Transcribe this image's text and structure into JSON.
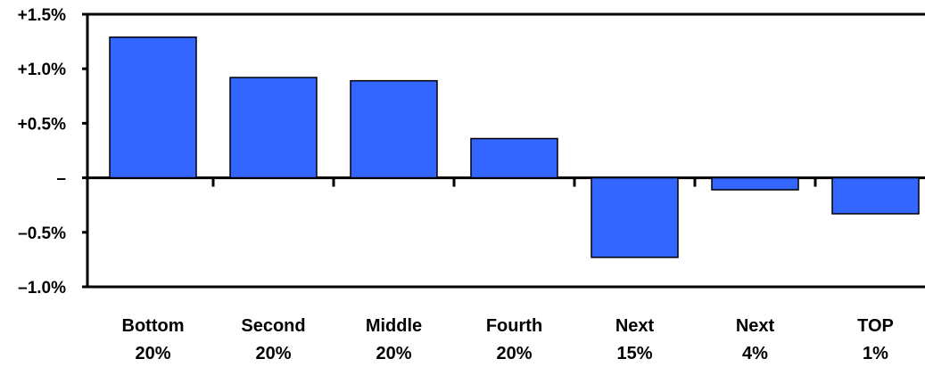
{
  "chart_data": {
    "type": "bar",
    "title": "",
    "xlabel": "",
    "ylabel": "",
    "ylim": [
      -1.0,
      1.5
    ],
    "yticks": [
      {
        "value": 1.5,
        "label": "+1.5%"
      },
      {
        "value": 1.0,
        "label": "+1.0%"
      },
      {
        "value": 0.5,
        "label": "+0.5%"
      },
      {
        "value": 0.0,
        "label": "–"
      },
      {
        "value": -0.5,
        "label": "–0.5%"
      },
      {
        "value": -1.0,
        "label": "–1.0%"
      }
    ],
    "categories": [
      {
        "line1": "Bottom",
        "line2": "20%"
      },
      {
        "line1": "Second",
        "line2": "20%"
      },
      {
        "line1": "Middle",
        "line2": "20%"
      },
      {
        "line1": "Fourth",
        "line2": "20%"
      },
      {
        "line1": "Next",
        "line2": "15%"
      },
      {
        "line1": "Next",
        "line2": "4%"
      },
      {
        "line1": "TOP",
        "line2": "1%"
      }
    ],
    "values": [
      1.29,
      0.92,
      0.89,
      0.36,
      -0.73,
      -0.11,
      -0.33
    ],
    "bar_color": "#3366ff",
    "grid": false,
    "legend": "none"
  }
}
